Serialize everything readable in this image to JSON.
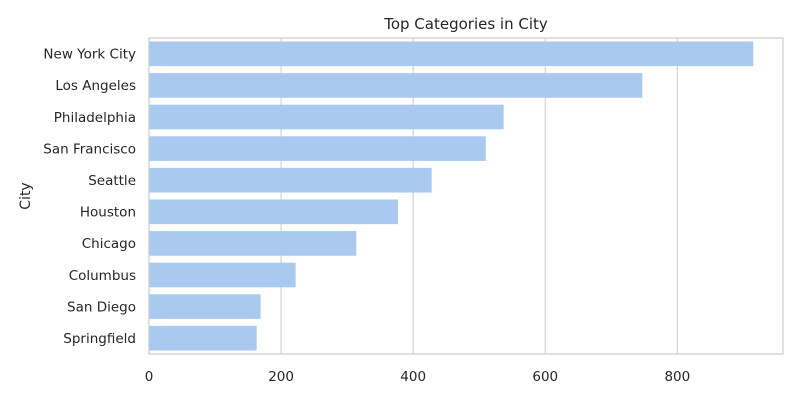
{
  "chart_data": {
    "type": "bar",
    "orientation": "horizontal",
    "title": "Top Categories in City",
    "xlabel": "",
    "ylabel": "City",
    "categories": [
      "New York City",
      "Los Angeles",
      "Philadelphia",
      "San Francisco",
      "Seattle",
      "Houston",
      "Chicago",
      "Columbus",
      "San Diego",
      "Springfield"
    ],
    "values": [
      915,
      747,
      537,
      510,
      428,
      377,
      314,
      222,
      169,
      163
    ],
    "xlim": [
      0,
      960
    ],
    "xticks": [
      0,
      200,
      400,
      600,
      800
    ],
    "grid": "vertical",
    "bar_color": "#a9c9f0",
    "grid_color": "#d0d0d0",
    "frame_color": "#cccccc"
  }
}
